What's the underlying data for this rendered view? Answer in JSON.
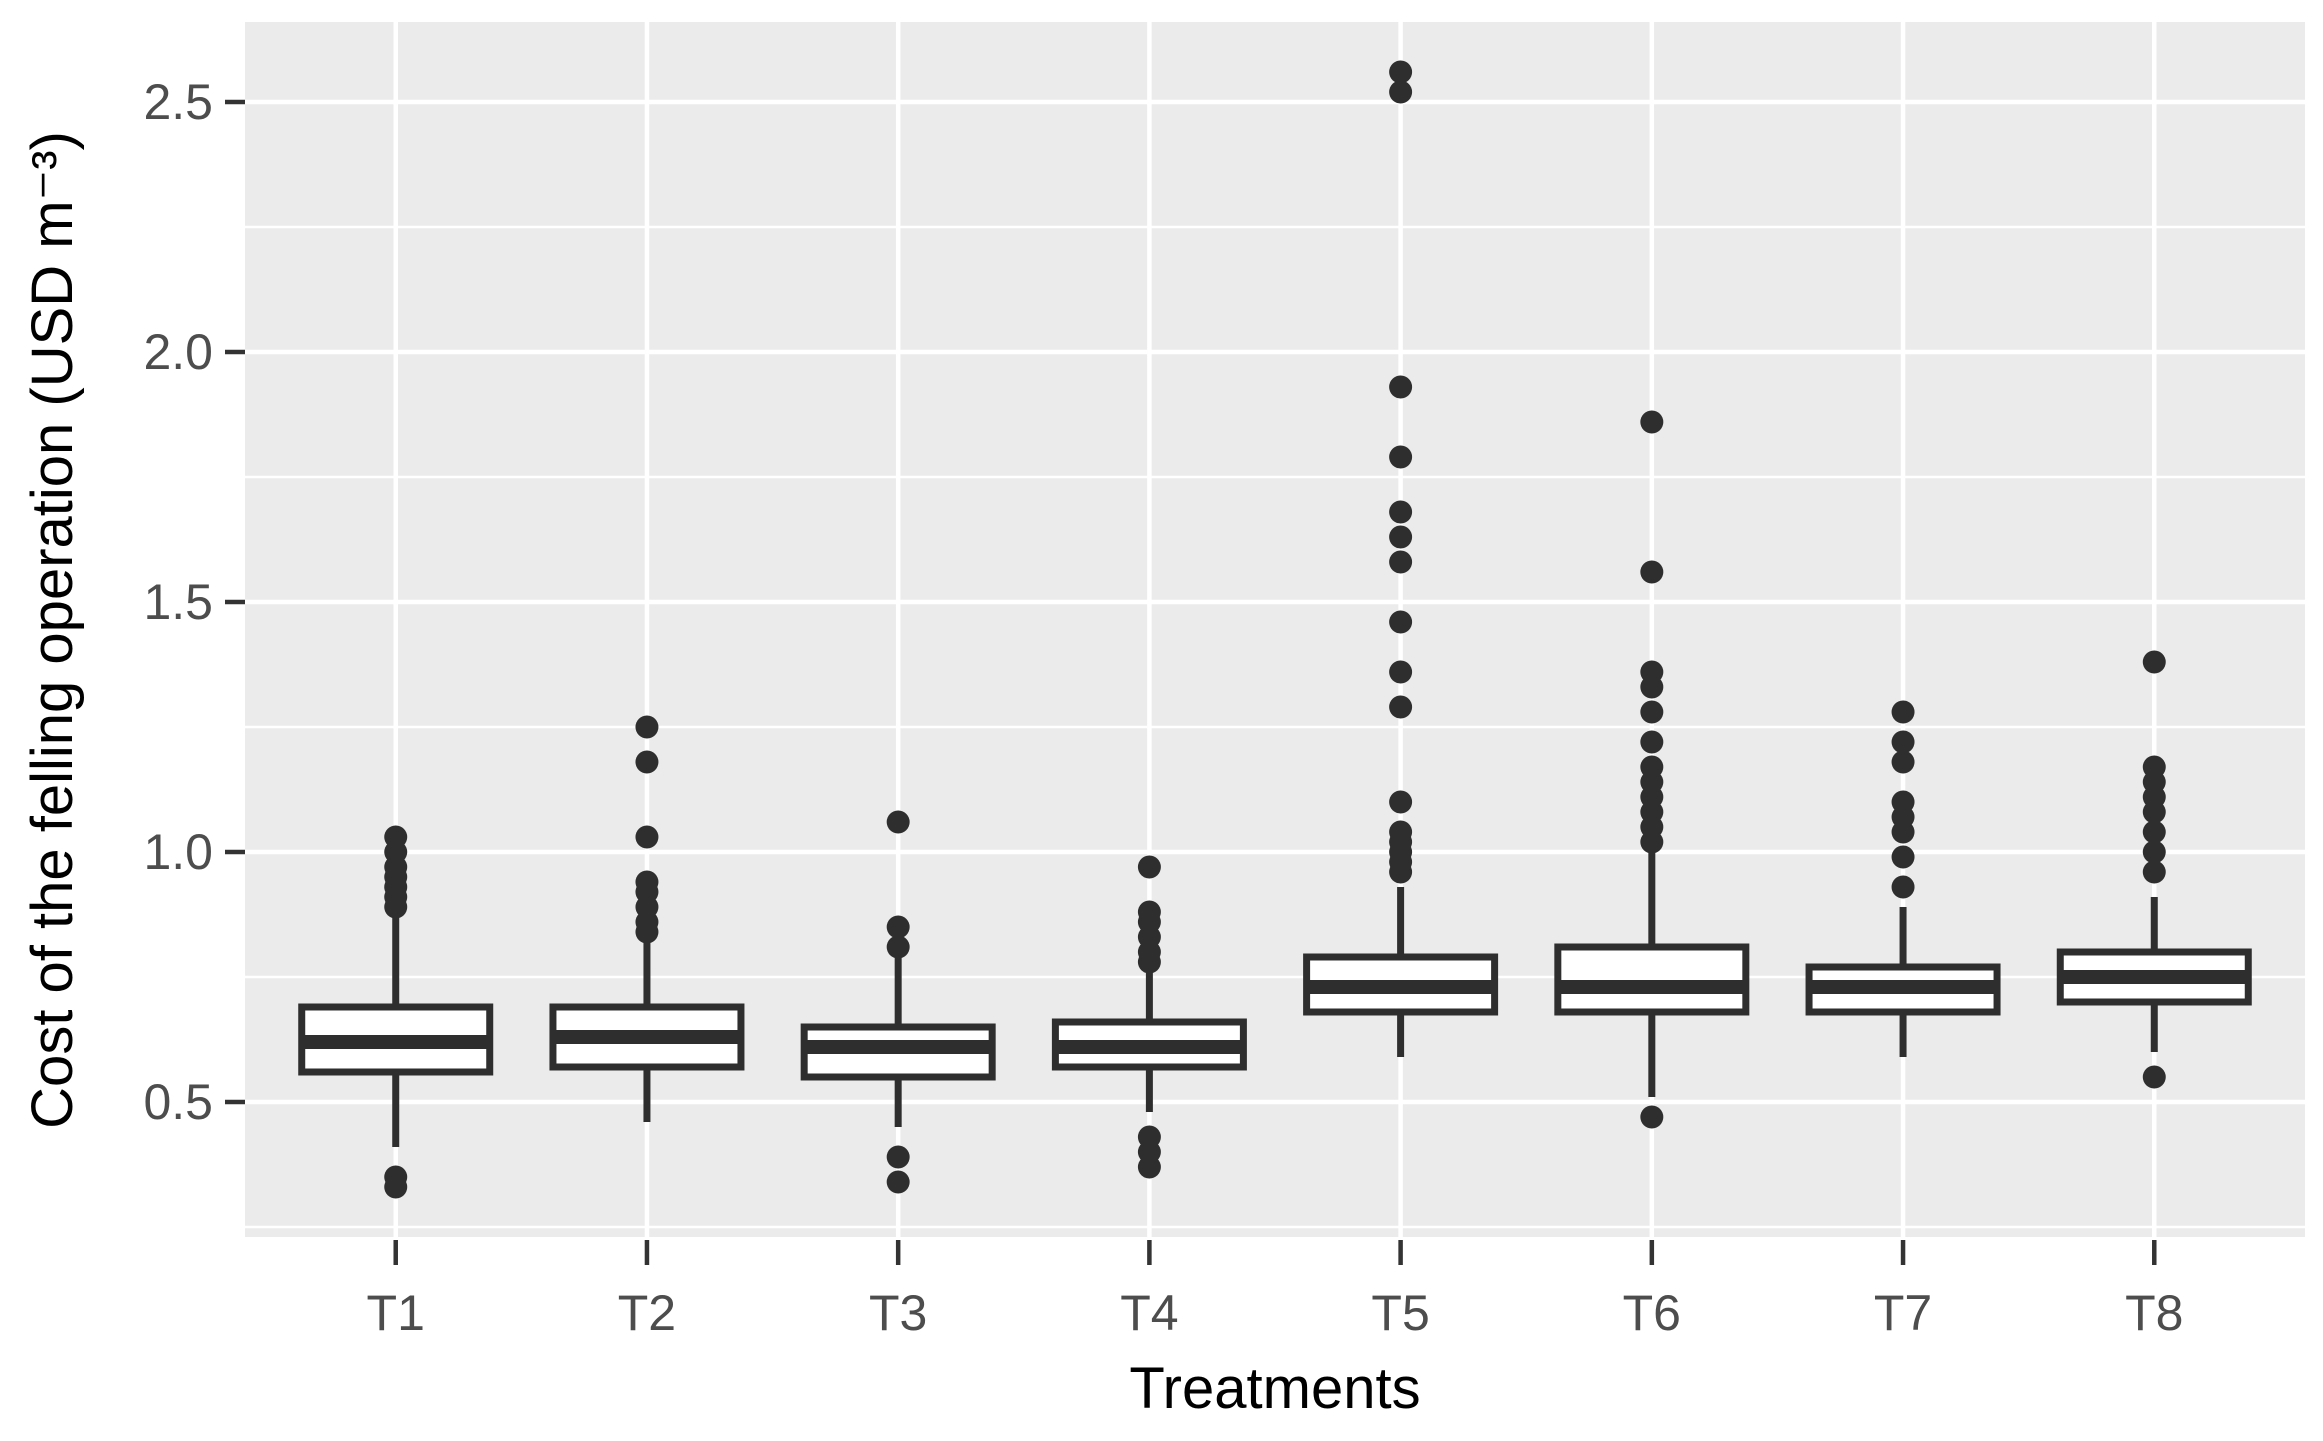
{
  "chart_data": {
    "type": "boxplot",
    "title": "",
    "xlabel": "Treatments",
    "ylabel": "Cost of the felling operation (USD m⁻³)",
    "categories": [
      "T1",
      "T2",
      "T3",
      "T4",
      "T5",
      "T6",
      "T7",
      "T8"
    ],
    "y_ticks": [
      0.5,
      1.0,
      1.5,
      2.0,
      2.5
    ],
    "y_tick_labels": [
      "0.5",
      "1.0",
      "1.5",
      "2.0",
      "2.5"
    ],
    "y_minor_ticks": [
      0.25,
      0.75,
      1.25,
      1.75,
      2.25
    ],
    "ylim": [
      0.23,
      2.66
    ],
    "grid": "major-horizontal, minor-horizontal, major-vertical-per-category",
    "legend": "none",
    "series": [
      {
        "category": "T1",
        "whisker_low": 0.41,
        "q1": 0.56,
        "median": 0.62,
        "q3": 0.69,
        "whisker_high": 0.87,
        "outliers_high": [
          0.89,
          0.91,
          0.93,
          0.95,
          0.97,
          1.0,
          1.03
        ],
        "outliers_low": [
          0.35,
          0.33
        ]
      },
      {
        "category": "T2",
        "whisker_low": 0.46,
        "q1": 0.57,
        "median": 0.63,
        "q3": 0.69,
        "whisker_high": 0.82,
        "outliers_high": [
          0.84,
          0.86,
          0.89,
          0.92,
          0.94,
          1.03,
          1.18,
          1.25
        ],
        "outliers_low": []
      },
      {
        "category": "T3",
        "whisker_low": 0.45,
        "q1": 0.55,
        "median": 0.61,
        "q3": 0.65,
        "whisker_high": 0.79,
        "outliers_high": [
          0.81,
          0.85,
          1.06
        ],
        "outliers_low": [
          0.39,
          0.34
        ]
      },
      {
        "category": "T4",
        "whisker_low": 0.48,
        "q1": 0.57,
        "median": 0.61,
        "q3": 0.66,
        "whisker_high": 0.76,
        "outliers_high": [
          0.78,
          0.8,
          0.83,
          0.86,
          0.88,
          0.97
        ],
        "outliers_low": [
          0.37,
          0.4,
          0.43
        ]
      },
      {
        "category": "T5",
        "whisker_low": 0.59,
        "q1": 0.68,
        "median": 0.73,
        "q3": 0.79,
        "whisker_high": 0.93,
        "outliers_high": [
          0.96,
          0.98,
          1.0,
          1.02,
          1.04,
          1.1,
          1.29,
          1.36,
          1.46,
          1.58,
          1.63,
          1.68,
          1.79,
          1.93,
          2.52,
          2.56
        ],
        "outliers_low": []
      },
      {
        "category": "T6",
        "whisker_low": 0.51,
        "q1": 0.68,
        "median": 0.73,
        "q3": 0.81,
        "whisker_high": 1.0,
        "outliers_high": [
          1.02,
          1.05,
          1.08,
          1.11,
          1.14,
          1.17,
          1.22,
          1.28,
          1.33,
          1.36,
          1.56,
          1.86
        ],
        "outliers_low": [
          0.47
        ]
      },
      {
        "category": "T7",
        "whisker_low": 0.59,
        "q1": 0.68,
        "median": 0.73,
        "q3": 0.77,
        "whisker_high": 0.89,
        "outliers_high": [
          0.93,
          0.99,
          1.04,
          1.07,
          1.1,
          1.18,
          1.22,
          1.28
        ],
        "outliers_low": []
      },
      {
        "category": "T8",
        "whisker_low": 0.6,
        "q1": 0.7,
        "median": 0.75,
        "q3": 0.8,
        "whisker_high": 0.91,
        "outliers_high": [
          0.96,
          1.0,
          1.04,
          1.08,
          1.11,
          1.14,
          1.17,
          1.38
        ],
        "outliers_low": [
          0.55
        ]
      }
    ],
    "style": {
      "panel_bg": "#EBEBEB",
      "grid_color": "#FFFFFF",
      "box_fill": "#FFFFFF",
      "line_color": "#2e2e2e",
      "tick_mark_color": "#333333",
      "tick_label_color": "#4D4D4D",
      "axis_title_color": "#000000",
      "page_bg": "#FFFFFF"
    }
  }
}
